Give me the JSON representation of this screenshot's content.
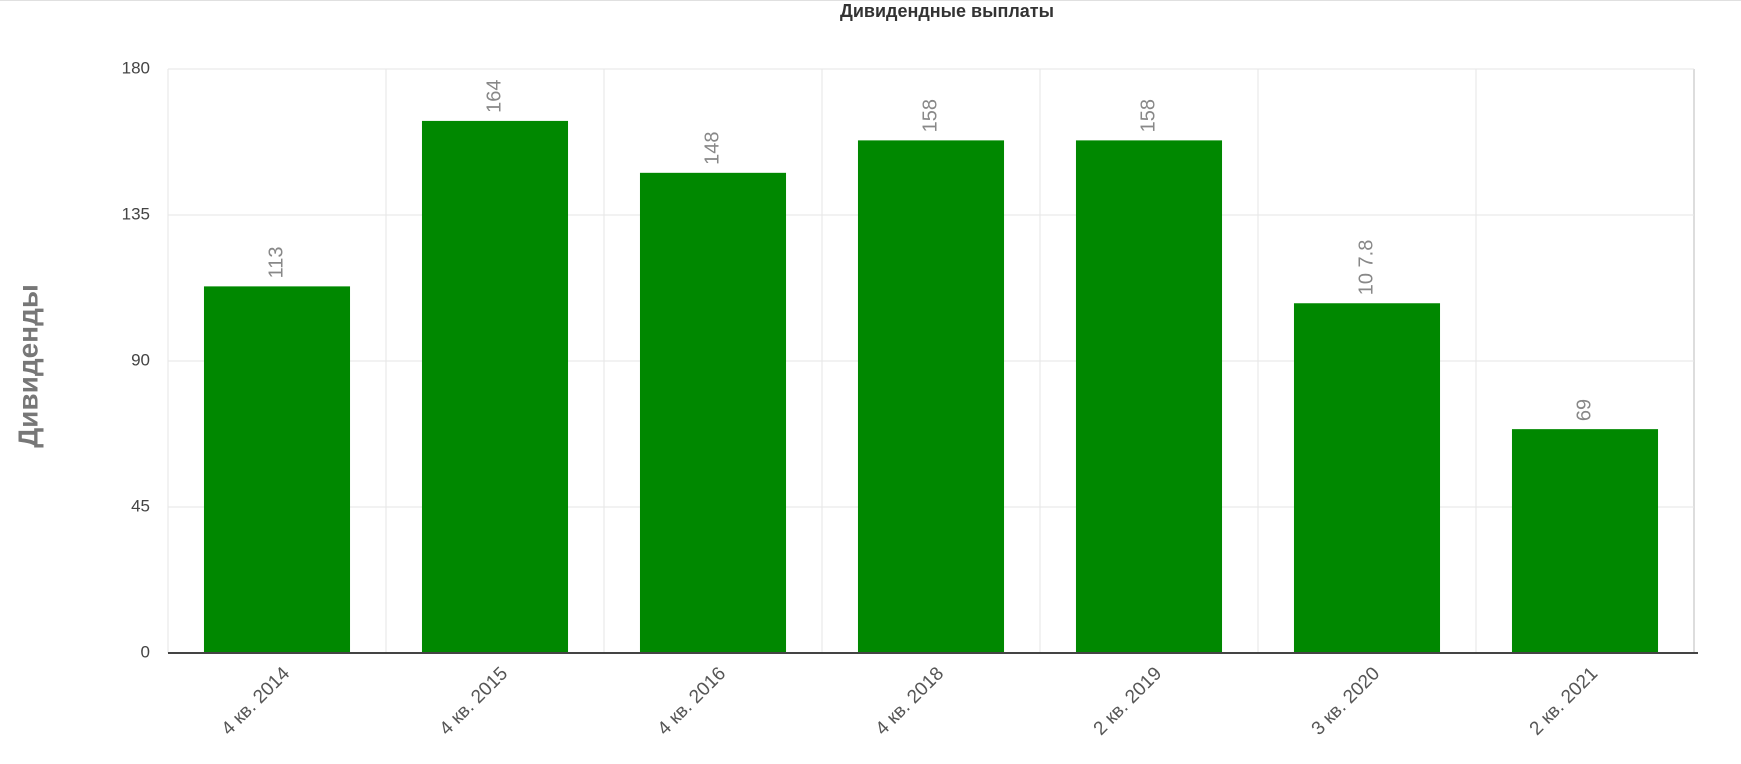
{
  "chart_data": {
    "type": "bar",
    "title": "Дивидендные выплаты",
    "y_label": "Дивиденды",
    "categories": [
      "4 кв. 2014",
      "4 кв. 2015",
      "4 кв. 2016",
      "4 кв. 2018",
      "2 кв. 2019",
      "3 кв. 2020",
      "2 кв. 2021"
    ],
    "values": [
      113,
      164,
      148,
      158,
      158,
      107.8,
      69
    ],
    "value_labels": [
      "113",
      "164",
      "148",
      "158",
      "158",
      "10 7.8",
      "69"
    ],
    "color": "#008800",
    "ylim": [
      0,
      180
    ],
    "yticks": [
      0,
      45,
      90,
      135,
      180
    ],
    "grid": true
  }
}
